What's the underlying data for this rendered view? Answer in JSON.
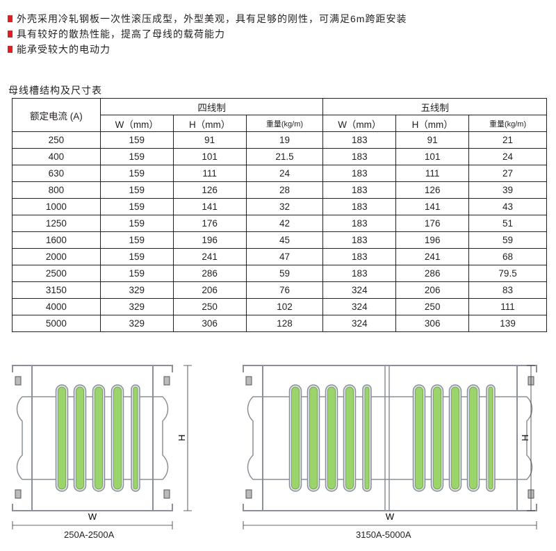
{
  "bullets": [
    "外壳采用冷轧钢板一次性滚压成型，外型美观，具有足够的刚性，可满足6m跨距安装",
    "具有较好的散热性能，提高了母线的载荷能力",
    "能承受较大的电动力"
  ],
  "table_title": "母线槽结构及尺寸表",
  "table": {
    "rated_current_header": "额定电流 (A)",
    "group_four": "四线制",
    "group_five": "五线制",
    "sub_headers": [
      "W（mm）",
      "H（mm）",
      "重量(kg/m)",
      "W（mm）",
      "H（mm）",
      "重量(kg/m)"
    ],
    "rows": [
      [
        "250",
        "159",
        "91",
        "19",
        "183",
        "91",
        "21"
      ],
      [
        "400",
        "159",
        "101",
        "21.5",
        "183",
        "101",
        "24"
      ],
      [
        "630",
        "159",
        "111",
        "24",
        "183",
        "111",
        "27"
      ],
      [
        "800",
        "159",
        "126",
        "28",
        "183",
        "126",
        "39"
      ],
      [
        "1000",
        "159",
        "141",
        "32",
        "183",
        "141",
        "43"
      ],
      [
        "1250",
        "159",
        "176",
        "42",
        "183",
        "176",
        "51"
      ],
      [
        "1600",
        "159",
        "196",
        "45",
        "183",
        "196",
        "59"
      ],
      [
        "2000",
        "159",
        "241",
        "47",
        "183",
        "241",
        "68"
      ],
      [
        "2500",
        "159",
        "286",
        "59",
        "183",
        "286",
        "79.5"
      ],
      [
        "3150",
        "329",
        "206",
        "76",
        "324",
        "206",
        "83"
      ],
      [
        "4000",
        "329",
        "250",
        "102",
        "324",
        "250",
        "111"
      ],
      [
        "5000",
        "329",
        "306",
        "128",
        "324",
        "306",
        "139"
      ]
    ]
  },
  "diagrams": [
    {
      "caption": "250A-2500A",
      "w_label": "W",
      "h_label": "H"
    },
    {
      "caption": "3150A-5000A",
      "w_label": "W",
      "h_label": "H"
    }
  ],
  "colors": {
    "bullet": "#e02020",
    "busbar": "#9bd46a",
    "housing": "#8a8f98"
  }
}
